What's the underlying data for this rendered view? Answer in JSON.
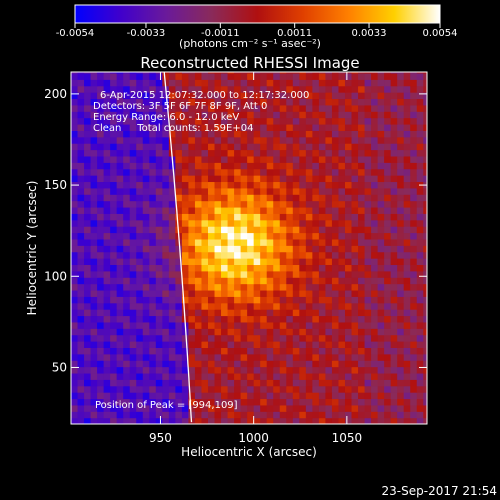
{
  "chart_data": {
    "type": "heatmap",
    "title": "Reconstructed RHESSI Image",
    "xlabel": "Heliocentric X (arcsec)",
    "ylabel": "Heliocentric Y (arcsec)",
    "xlim": [
      902,
      1093
    ],
    "ylim": [
      19,
      212
    ],
    "x_ticks": [
      950,
      1000,
      1050
    ],
    "y_ticks": [
      50,
      100,
      150,
      200
    ],
    "colorbar": {
      "range": [
        -0.0054,
        0.0054
      ],
      "ticks": [
        -0.0054,
        -0.0033,
        -0.0011,
        0.0011,
        0.0033,
        0.0054
      ],
      "tick_labels": [
        "-0.0054",
        "-0.0033",
        "-0.0011",
        "0.0011",
        "0.0033",
        "0.0054"
      ],
      "unit_label": "(photons cm⁻² s⁻¹ asec⁻²)",
      "colormap": [
        "#0000ff",
        "#4000cc",
        "#6a1a9a",
        "#8a2a5a",
        "#b01010",
        "#e04000",
        "#ff8000",
        "#ffd000",
        "#ffffff"
      ]
    },
    "peak": {
      "x": 994,
      "y": 109
    },
    "source": {
      "center_x": 990,
      "center_y": 118,
      "sigma": 22
    },
    "limb_arc": {
      "color": "#ffffff"
    },
    "annotations": [
      "6-Apr-2015 12:07:32.000 to 12:17:32.000",
      "Detectors: 3F 5F 6F 7F 8F 9F, Att 0",
      "Energy Range: 6.0 - 12.0 keV",
      "Clean     Total counts: 1.59E+04"
    ],
    "peak_label": "Position of Peak = [994,109]",
    "date_stamp": "23-Sep-2017 21:54"
  }
}
